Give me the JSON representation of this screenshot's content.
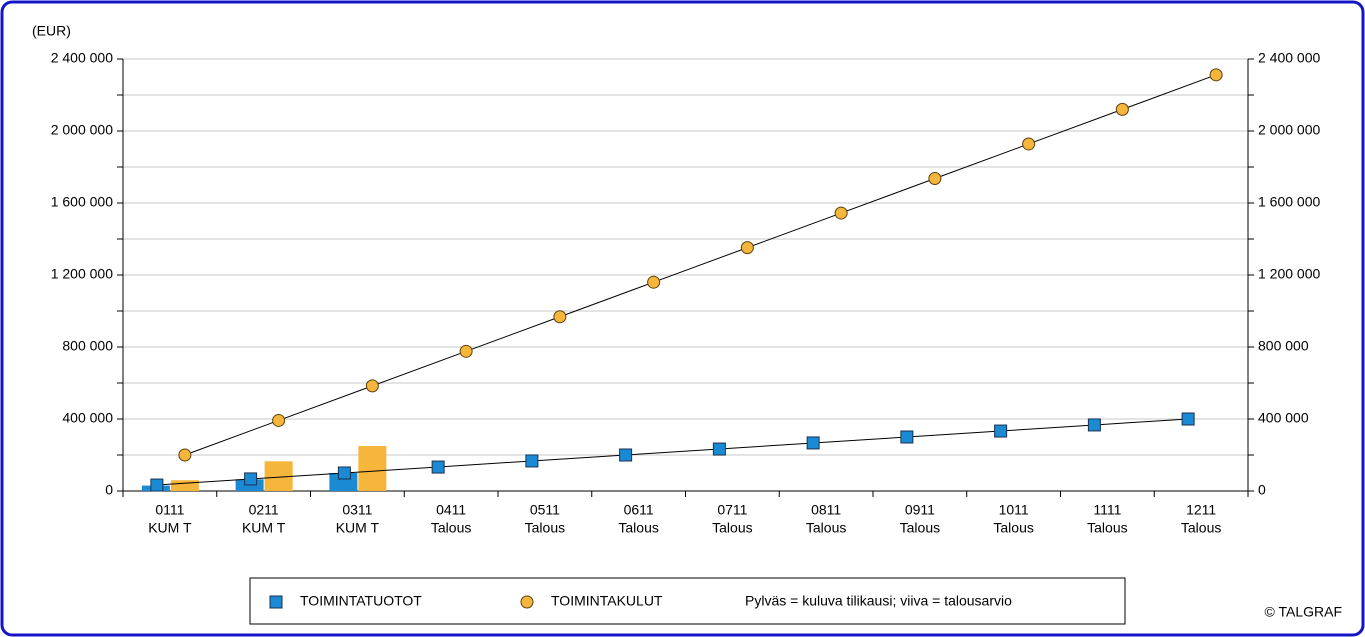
{
  "chart_data": {
    "type": "bar_line",
    "unit_label": "(EUR)",
    "categories": [
      [
        "0111",
        "KUM T"
      ],
      [
        "0211",
        "KUM T"
      ],
      [
        "0311",
        "KUM T"
      ],
      [
        "0411",
        "Talous"
      ],
      [
        "0511",
        "Talous"
      ],
      [
        "0611",
        "Talous"
      ],
      [
        "0711",
        "Talous"
      ],
      [
        "0811",
        "Talous"
      ],
      [
        "0911",
        "Talous"
      ],
      [
        "1011",
        "Talous"
      ],
      [
        "1111",
        "Talous"
      ],
      [
        "1211",
        "Talous"
      ]
    ],
    "series": [
      {
        "name": "TOIMINTATUOTOT",
        "color": "#1a8ad4",
        "marker": "square",
        "bar_values": [
          30000,
          65000,
          100000,
          null,
          null,
          null,
          null,
          null,
          null,
          null,
          null,
          null
        ],
        "values": [
          33000,
          67000,
          100000,
          133000,
          167000,
          200000,
          233000,
          267000,
          300000,
          333000,
          367000,
          400000
        ]
      },
      {
        "name": "TOIMINTAKULUT",
        "color": "#f6b53b",
        "marker": "circle",
        "bar_values": [
          60000,
          165000,
          250000,
          null,
          null,
          null,
          null,
          null,
          null,
          null,
          null,
          null
        ],
        "values": [
          200000,
          392000,
          584000,
          776000,
          968000,
          1160000,
          1352000,
          1544000,
          1736000,
          1928000,
          2120000,
          2312000
        ]
      }
    ],
    "legend_note": "Pylväs = kuluva tilikausi; viiva  = talousarvio",
    "credit": "© TALGRAF",
    "ylim": [
      0,
      2400000
    ],
    "yticks": [
      0,
      {
        "value": 400000,
        "label": "400 000"
      },
      {
        "value": 800000,
        "label": "800 000"
      },
      {
        "value": 1200000,
        "label": "1 200 000"
      },
      {
        "value": 1600000,
        "label": "1 600 000"
      },
      {
        "value": 2000000,
        "label": "2 000 000"
      },
      {
        "value": 2400000,
        "label": "2 400 000"
      }
    ],
    "yminorticks": [
      200000,
      600000,
      1000000,
      1400000,
      1800000,
      2200000
    ],
    "y2lim": [
      0,
      2400000
    ],
    "y2ticks": [
      0,
      {
        "value": 400000,
        "label": "400 000"
      },
      {
        "value": 800000,
        "label": "800 000"
      },
      {
        "value": 1200000,
        "label": "1 200 000"
      },
      {
        "value": 1600000,
        "label": "1 600 000"
      },
      {
        "value": 2000000,
        "label": "2 000 000"
      },
      {
        "value": 2400000,
        "label": "2 400 000"
      }
    ],
    "grid": true
  }
}
